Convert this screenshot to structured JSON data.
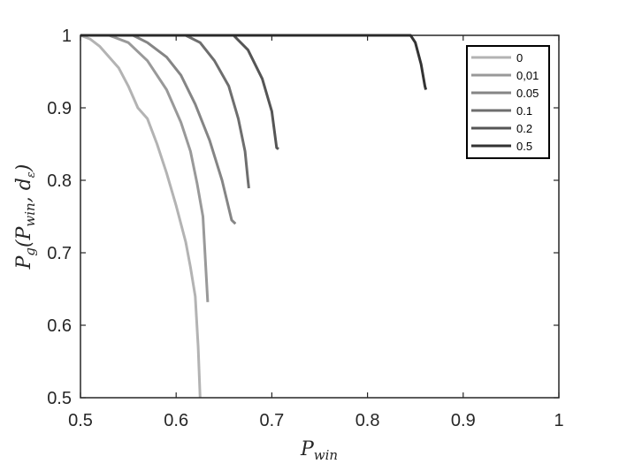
{
  "chart_data": {
    "type": "line",
    "xlabel": "P_win",
    "ylabel": "P_g(P_win, d_ε)",
    "xlim": [
      0.5,
      1
    ],
    "ylim": [
      0.5,
      1
    ],
    "x_ticks": [
      "0.5",
      "0.6",
      "0.7",
      "0.8",
      "0.9",
      "1"
    ],
    "y_ticks": [
      "0.5",
      "0.6",
      "0.7",
      "0.8",
      "0.9",
      "1"
    ],
    "legend_position": "top-right",
    "grid": false,
    "series": [
      {
        "name": "0",
        "color": "#b3b3b3",
        "points": [
          [
            0.5,
            1.0
          ],
          [
            0.51,
            0.995
          ],
          [
            0.52,
            0.985
          ],
          [
            0.53,
            0.97
          ],
          [
            0.54,
            0.955
          ],
          [
            0.55,
            0.93
          ],
          [
            0.56,
            0.9
          ],
          [
            0.57,
            0.885
          ],
          [
            0.58,
            0.85
          ],
          [
            0.59,
            0.81
          ],
          [
            0.6,
            0.765
          ],
          [
            0.61,
            0.715
          ],
          [
            0.615,
            0.68
          ],
          [
            0.62,
            0.64
          ],
          [
            0.623,
            0.57
          ],
          [
            0.625,
            0.5
          ]
        ]
      },
      {
        "name": "0,01",
        "color": "#999999",
        "points": [
          [
            0.5,
            1.0
          ],
          [
            0.53,
            1.0
          ],
          [
            0.55,
            0.99
          ],
          [
            0.57,
            0.965
          ],
          [
            0.59,
            0.925
          ],
          [
            0.605,
            0.88
          ],
          [
            0.615,
            0.84
          ],
          [
            0.622,
            0.795
          ],
          [
            0.628,
            0.75
          ],
          [
            0.631,
            0.68
          ],
          [
            0.633,
            0.632
          ]
        ]
      },
      {
        "name": "0.05",
        "color": "#858585",
        "points": [
          [
            0.5,
            1.0
          ],
          [
            0.555,
            1.0
          ],
          [
            0.57,
            0.99
          ],
          [
            0.59,
            0.97
          ],
          [
            0.605,
            0.945
          ],
          [
            0.62,
            0.905
          ],
          [
            0.635,
            0.855
          ],
          [
            0.648,
            0.8
          ],
          [
            0.658,
            0.745
          ],
          [
            0.662,
            0.74
          ]
        ]
      },
      {
        "name": "0.1",
        "color": "#6e6e6e",
        "points": [
          [
            0.5,
            1.0
          ],
          [
            0.61,
            1.0
          ],
          [
            0.625,
            0.99
          ],
          [
            0.64,
            0.965
          ],
          [
            0.655,
            0.93
          ],
          [
            0.665,
            0.885
          ],
          [
            0.672,
            0.84
          ],
          [
            0.675,
            0.8
          ],
          [
            0.676,
            0.789
          ]
        ]
      },
      {
        "name": "0.2",
        "color": "#555555",
        "points": [
          [
            0.5,
            1.0
          ],
          [
            0.66,
            1.0
          ],
          [
            0.675,
            0.98
          ],
          [
            0.69,
            0.94
          ],
          [
            0.7,
            0.895
          ],
          [
            0.705,
            0.845
          ],
          [
            0.707,
            0.843
          ]
        ]
      },
      {
        "name": "0.5",
        "color": "#333333",
        "points": [
          [
            0.5,
            1.0
          ],
          [
            0.845,
            1.0
          ],
          [
            0.85,
            0.99
          ],
          [
            0.856,
            0.96
          ],
          [
            0.86,
            0.93
          ],
          [
            0.861,
            0.925
          ]
        ]
      }
    ]
  }
}
